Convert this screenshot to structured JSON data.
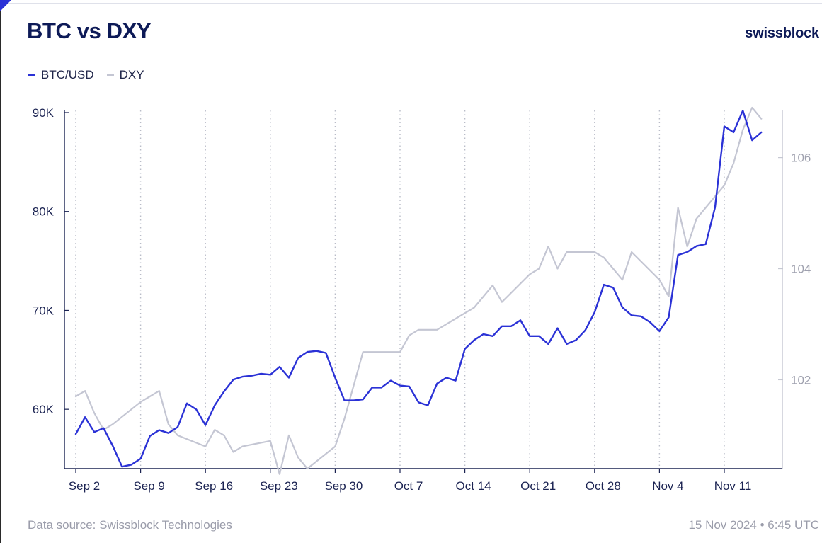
{
  "title": "BTC vs DXY",
  "brand": "swissblock",
  "legend": [
    {
      "label": "BTC/USD",
      "color": "#2b32d6"
    },
    {
      "label": "DXY",
      "color": "#c4c6d3"
    }
  ],
  "footer": {
    "source": "Data source: Swissblock Technologies",
    "timestamp": "15 Nov 2024 • 6:45 UTC"
  },
  "chart_data": {
    "type": "line",
    "title": "BTC vs DXY",
    "xlabel": "",
    "ylabel": "",
    "x_ticks": [
      "Sep 2",
      "Sep 9",
      "Sep 16",
      "Sep 23",
      "Sep 30",
      "Oct 7",
      "Oct 14",
      "Oct 21",
      "Oct 28",
      "Nov 4",
      "Nov 11"
    ],
    "y_left": {
      "ticks": [
        90000,
        80000,
        70000,
        60000
      ],
      "tick_labels": [
        "90K",
        "80K",
        "70K",
        "60K"
      ],
      "ylim": [
        54000,
        90500
      ]
    },
    "y_right": {
      "ticks": [
        106,
        104,
        102
      ],
      "tick_labels": [
        "106",
        "104",
        "102"
      ],
      "ylim": [
        100.4,
        106.9
      ]
    },
    "grid": "vertical dotted at x ticks",
    "legend_position": "top-left",
    "series": [
      {
        "name": "BTC/USD",
        "axis": "left",
        "color": "#2b32d6",
        "dates": [
          "2024-09-02",
          "2024-09-03",
          "2024-09-04",
          "2024-09-05",
          "2024-09-06",
          "2024-09-07",
          "2024-09-08",
          "2024-09-09",
          "2024-09-10",
          "2024-09-11",
          "2024-09-12",
          "2024-09-13",
          "2024-09-14",
          "2024-09-15",
          "2024-09-16",
          "2024-09-17",
          "2024-09-18",
          "2024-09-19",
          "2024-09-20",
          "2024-09-21",
          "2024-09-22",
          "2024-09-23",
          "2024-09-24",
          "2024-09-25",
          "2024-09-26",
          "2024-09-27",
          "2024-09-28",
          "2024-09-29",
          "2024-09-30",
          "2024-10-01",
          "2024-10-02",
          "2024-10-03",
          "2024-10-04",
          "2024-10-05",
          "2024-10-06",
          "2024-10-07",
          "2024-10-08",
          "2024-10-09",
          "2024-10-10",
          "2024-10-11",
          "2024-10-12",
          "2024-10-13",
          "2024-10-14",
          "2024-10-15",
          "2024-10-16",
          "2024-10-17",
          "2024-10-18",
          "2024-10-19",
          "2024-10-20",
          "2024-10-21",
          "2024-10-22",
          "2024-10-23",
          "2024-10-24",
          "2024-10-25",
          "2024-10-26",
          "2024-10-27",
          "2024-10-28",
          "2024-10-29",
          "2024-10-30",
          "2024-10-31",
          "2024-11-01",
          "2024-11-02",
          "2024-11-03",
          "2024-11-04",
          "2024-11-05",
          "2024-11-06",
          "2024-11-07",
          "2024-11-08",
          "2024-11-09",
          "2024-11-10",
          "2024-11-11",
          "2024-11-12",
          "2024-11-13",
          "2024-11-14",
          "2024-11-15"
        ],
        "values": [
          57500,
          59200,
          57700,
          58100,
          56300,
          54200,
          54400,
          55000,
          57300,
          57900,
          57600,
          58200,
          60600,
          60000,
          58400,
          60400,
          61800,
          63000,
          63300,
          63400,
          63600,
          63500,
          64300,
          63200,
          65200,
          65800,
          65900,
          65700,
          63200,
          60900,
          60900,
          61000,
          62200,
          62200,
          62900,
          62400,
          62300,
          60700,
          60400,
          62600,
          63200,
          62900,
          66100,
          67000,
          67600,
          67400,
          68400,
          68400,
          69000,
          67400,
          67400,
          66600,
          68200,
          66600,
          67000,
          68000,
          69800,
          72600,
          72300,
          70300,
          69500,
          69400,
          68800,
          67900,
          69300,
          75600,
          75900,
          76500,
          76700,
          80400,
          88600,
          88000,
          90200,
          87200,
          88000
        ]
      },
      {
        "name": "DXY",
        "axis": "right",
        "color": "#c4c6d3",
        "dates": [
          "2024-09-02",
          "2024-09-03",
          "2024-09-04",
          "2024-09-05",
          "2024-09-06",
          "2024-09-09",
          "2024-09-10",
          "2024-09-11",
          "2024-09-12",
          "2024-09-13",
          "2024-09-16",
          "2024-09-17",
          "2024-09-18",
          "2024-09-19",
          "2024-09-20",
          "2024-09-23",
          "2024-09-24",
          "2024-09-25",
          "2024-09-26",
          "2024-09-27",
          "2024-09-30",
          "2024-10-01",
          "2024-10-02",
          "2024-10-03",
          "2024-10-04",
          "2024-10-07",
          "2024-10-08",
          "2024-10-09",
          "2024-10-10",
          "2024-10-11",
          "2024-10-14",
          "2024-10-15",
          "2024-10-16",
          "2024-10-17",
          "2024-10-18",
          "2024-10-21",
          "2024-10-22",
          "2024-10-23",
          "2024-10-24",
          "2024-10-25",
          "2024-10-28",
          "2024-10-29",
          "2024-10-30",
          "2024-10-31",
          "2024-11-01",
          "2024-11-04",
          "2024-11-05",
          "2024-11-06",
          "2024-11-07",
          "2024-11-08",
          "2024-11-11",
          "2024-11-12",
          "2024-11-13",
          "2024-11-14",
          "2024-11-15"
        ],
        "values": [
          101.7,
          101.8,
          101.4,
          101.1,
          101.2,
          101.6,
          101.7,
          101.8,
          101.2,
          101.0,
          100.8,
          101.1,
          101.0,
          100.7,
          100.8,
          100.9,
          100.3,
          101.0,
          100.6,
          100.4,
          100.8,
          101.3,
          101.9,
          102.5,
          102.5,
          102.5,
          102.8,
          102.9,
          102.9,
          102.9,
          103.2,
          103.3,
          103.5,
          103.7,
          103.4,
          103.9,
          104.0,
          104.4,
          104.0,
          104.3,
          104.3,
          104.2,
          104.0,
          103.8,
          104.3,
          103.8,
          103.5,
          105.1,
          104.4,
          104.9,
          105.5,
          105.9,
          106.5,
          106.9,
          106.7
        ]
      }
    ]
  }
}
